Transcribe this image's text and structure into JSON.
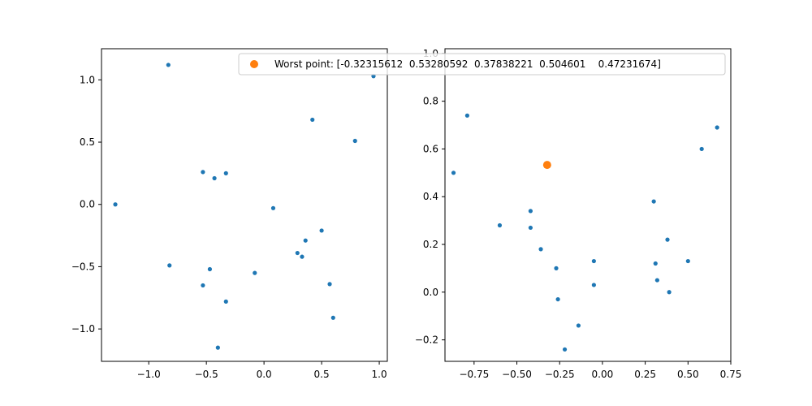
{
  "chart_data": [
    {
      "type": "scatter",
      "xlim": [
        -1.41,
        1.07
      ],
      "ylim": [
        -1.26,
        1.25
      ],
      "xticks": [
        {
          "value": -1.0,
          "label": "−1.0"
        },
        {
          "value": -0.5,
          "label": "−0.5"
        },
        {
          "value": 0.0,
          "label": "0.0"
        },
        {
          "value": 0.5,
          "label": "0.5"
        },
        {
          "value": 1.0,
          "label": "1.0"
        }
      ],
      "yticks": [
        {
          "value": -1.0,
          "label": "−1.0"
        },
        {
          "value": -0.5,
          "label": "−0.5"
        },
        {
          "value": 0.0,
          "label": "0.0"
        },
        {
          "value": 0.5,
          "label": "0.5"
        },
        {
          "value": 1.0,
          "label": "1.0"
        }
      ],
      "grid": false,
      "series": [
        {
          "color": "#1f77b4",
          "points": [
            [
              -0.83,
              1.12
            ],
            [
              0.95,
              1.03
            ],
            [
              0.42,
              0.68
            ],
            [
              0.79,
              0.51
            ],
            [
              -0.53,
              0.26
            ],
            [
              -0.43,
              0.21
            ],
            [
              -0.33,
              0.25
            ],
            [
              -1.29,
              0.0
            ],
            [
              0.08,
              -0.03
            ],
            [
              0.5,
              -0.21
            ],
            [
              0.36,
              -0.29
            ],
            [
              0.29,
              -0.39
            ],
            [
              0.33,
              -0.42
            ],
            [
              -0.82,
              -0.49
            ],
            [
              -0.47,
              -0.52
            ],
            [
              -0.08,
              -0.55
            ],
            [
              -0.53,
              -0.65
            ],
            [
              0.57,
              -0.64
            ],
            [
              -0.33,
              -0.78
            ],
            [
              0.6,
              -0.91
            ],
            [
              -0.4,
              -1.15
            ]
          ]
        }
      ]
    },
    {
      "type": "scatter",
      "xlim": [
        -0.92,
        0.75
      ],
      "ylim": [
        -0.29,
        1.02
      ],
      "xticks": [
        {
          "value": -0.75,
          "label": "−0.75"
        },
        {
          "value": -0.5,
          "label": "−0.50"
        },
        {
          "value": -0.25,
          "label": "−0.25"
        },
        {
          "value": 0.0,
          "label": "0.00"
        },
        {
          "value": 0.25,
          "label": "0.25"
        },
        {
          "value": 0.5,
          "label": "0.50"
        },
        {
          "value": 0.75,
          "label": "0.75"
        }
      ],
      "yticks": [
        {
          "value": -0.2,
          "label": "−0.2"
        },
        {
          "value": 0.0,
          "label": "0.0"
        },
        {
          "value": 0.2,
          "label": "0.2"
        },
        {
          "value": 0.4,
          "label": "0.4"
        },
        {
          "value": 0.6,
          "label": "0.6"
        },
        {
          "value": 0.8,
          "label": "0.8"
        },
        {
          "value": 1.0,
          "label": "1.0"
        }
      ],
      "grid": false,
      "series": [
        {
          "color": "#1f77b4",
          "points": [
            [
              -0.79,
              0.74
            ],
            [
              -0.87,
              0.5
            ],
            [
              0.67,
              0.69
            ],
            [
              0.58,
              0.6
            ],
            [
              0.3,
              0.38
            ],
            [
              -0.42,
              0.34
            ],
            [
              -0.6,
              0.28
            ],
            [
              -0.42,
              0.27
            ],
            [
              0.38,
              0.22
            ],
            [
              -0.36,
              0.18
            ],
            [
              -0.05,
              0.13
            ],
            [
              0.5,
              0.13
            ],
            [
              0.31,
              0.12
            ],
            [
              -0.27,
              0.1
            ],
            [
              0.32,
              0.05
            ],
            [
              -0.05,
              0.03
            ],
            [
              0.39,
              0.0
            ],
            [
              -0.26,
              -0.03
            ],
            [
              -0.14,
              -0.14
            ],
            [
              -0.22,
              -0.24
            ]
          ]
        },
        {
          "name": "Worst point: [-0.32315612  0.53280592  0.37838221  0.504601    0.47231674]",
          "color": "#ff7f0e",
          "points": [
            [
              -0.323,
              0.533
            ]
          ]
        }
      ],
      "legend": "top-right"
    }
  ]
}
